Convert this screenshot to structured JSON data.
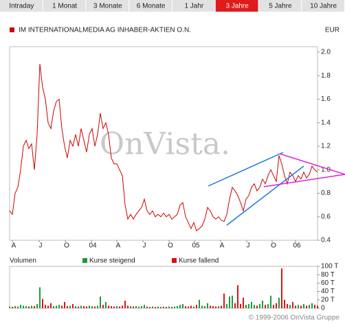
{
  "tabs": [
    "Intraday",
    "1 Monat",
    "3 Monate",
    "6 Monate",
    "1 Jahr",
    "3 Jahre",
    "5 Jahre",
    "10 Jahre"
  ],
  "active_tab": 5,
  "watermark": "OnVista.",
  "copyright": "© 1999-2006 OnVista Gruppe",
  "chart_data": [
    {
      "type": "line",
      "title": "IM INTERNATIONALMEDIA AG INHABER-AKTIEN O.N.",
      "unit": "EUR",
      "color": "#cc0000",
      "xlim": [
        0,
        112
      ],
      "xticks": [
        {
          "value": 1,
          "label": "A"
        },
        {
          "value": 10.75,
          "label": "J"
        },
        {
          "value": 20.25,
          "label": "O"
        },
        {
          "value": 29.75,
          "label": "04"
        },
        {
          "value": 39,
          "label": "A"
        },
        {
          "value": 48.5,
          "label": "J"
        },
        {
          "value": 58,
          "label": "O"
        },
        {
          "value": 67.25,
          "label": "05"
        },
        {
          "value": 76.75,
          "label": "A"
        },
        {
          "value": 86.25,
          "label": "J"
        },
        {
          "value": 95.5,
          "label": "O"
        },
        {
          "value": 104,
          "label": "06"
        }
      ],
      "ylim": [
        0.4,
        2
      ],
      "yticks": [
        0.4,
        0.6,
        0.8,
        {
          "value": 1,
          "label": "1.0"
        },
        1.2,
        1.4,
        1.6,
        1.8,
        {
          "value": 2,
          "label": "2.0"
        }
      ],
      "values": [
        0.65,
        0.62,
        0.8,
        0.85,
        1.0,
        1.2,
        1.25,
        1.18,
        1.22,
        1.0,
        1.3,
        1.9,
        1.7,
        1.6,
        1.4,
        1.35,
        1.5,
        1.58,
        1.6,
        1.35,
        1.2,
        1.1,
        1.25,
        1.2,
        1.3,
        1.2,
        1.35,
        1.25,
        1.15,
        1.3,
        1.35,
        1.2,
        1.3,
        1.48,
        1.35,
        1.4,
        1.3,
        1.1,
        1.05,
        1.05,
        1.0,
        0.95,
        0.7,
        0.58,
        0.62,
        0.58,
        0.62,
        0.65,
        0.68,
        0.75,
        0.65,
        0.62,
        0.65,
        0.6,
        0.62,
        0.6,
        0.63,
        0.6,
        0.62,
        0.58,
        0.6,
        0.62,
        0.7,
        0.72,
        0.6,
        0.55,
        0.5,
        0.55,
        0.48,
        0.5,
        0.52,
        0.58,
        0.68,
        0.65,
        0.6,
        0.58,
        0.6,
        0.57,
        0.56,
        0.62,
        0.75,
        0.85,
        0.82,
        0.78,
        0.72,
        0.65,
        0.75,
        0.78,
        0.85,
        0.88,
        0.82,
        0.85,
        0.92,
        0.88,
        0.95,
        1.0,
        0.95,
        0.9,
        1.12,
        1.05,
        0.95,
        0.88,
        0.98,
        0.95,
        0.9,
        0.95,
        0.92,
        0.98,
        0.93,
        0.96,
        1.03,
        1.0,
        0.98
      ]
    },
    {
      "type": "bar",
      "title": "Volumen",
      "legend": [
        {
          "name": "Kurse steigend",
          "color": "#1a9a3a"
        },
        {
          "name": "Kurse fallend",
          "color": "#dd1111"
        }
      ],
      "xlim": [
        0,
        112
      ],
      "ylim": [
        0,
        100
      ],
      "yticks": [
        0,
        {
          "value": 20,
          "label": "20 T"
        },
        {
          "value": 40,
          "label": "40 T"
        },
        {
          "value": 60,
          "label": "60 T"
        },
        {
          "value": 80,
          "label": "80 T"
        },
        {
          "value": 100,
          "label": "100 T"
        }
      ],
      "values": [
        4,
        3,
        5,
        4,
        8,
        6,
        5,
        4,
        6,
        5,
        10,
        50,
        22,
        8,
        6,
        12,
        5,
        6,
        8,
        6,
        15,
        5,
        6,
        10,
        5,
        4,
        6,
        5,
        4,
        6,
        5,
        4,
        6,
        28,
        8,
        15,
        6,
        5,
        4,
        5,
        4,
        6,
        18,
        6,
        5,
        4,
        5,
        4,
        5,
        8,
        4,
        3,
        4,
        3,
        4,
        3,
        4,
        3,
        4,
        3,
        4,
        5,
        8,
        10,
        5,
        4,
        6,
        4,
        8,
        20,
        6,
        5,
        12,
        6,
        5,
        4,
        5,
        6,
        35,
        10,
        28,
        30,
        12,
        55,
        10,
        25,
        8,
        10,
        15,
        8,
        6,
        10,
        18,
        8,
        10,
        30,
        8,
        12,
        25,
        95,
        20,
        10,
        8,
        15,
        6,
        8,
        6,
        10,
        6,
        8,
        12,
        8,
        6
      ]
    }
  ]
}
